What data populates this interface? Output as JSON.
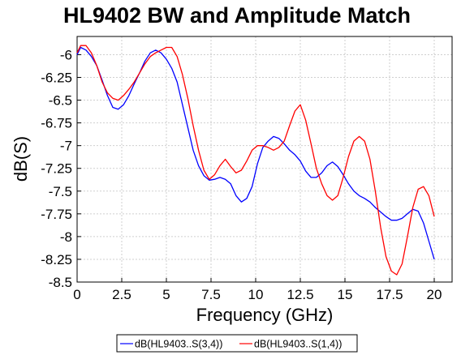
{
  "chart_data": {
    "type": "line",
    "title": "HL9402 BW and Amplitude Match",
    "xlabel": "Frequency (GHz)",
    "ylabel": "dB(S)",
    "xlim": [
      0,
      21
    ],
    "ylim": [
      -8.5,
      -5.8
    ],
    "xticks": [
      0,
      2.5,
      5,
      7.5,
      10,
      12.5,
      15,
      17.5,
      20
    ],
    "xtick_labels": [
      "0",
      "2.5",
      "5",
      "7.5",
      "10",
      "12.5",
      "15",
      "17.5",
      "20"
    ],
    "yticks": [
      -6,
      -6.25,
      -6.5,
      -6.75,
      -7,
      -7.25,
      -7.5,
      -7.75,
      -8,
      -8.25,
      -8.5
    ],
    "ytick_labels": [
      "-6",
      "-6.25",
      "-6.5",
      "-6.75",
      "-7",
      "-7.25",
      "-7.5",
      "-7.75",
      "-8",
      "-8.25",
      "-8.5"
    ],
    "grid": true,
    "legend_position": "bottom-center",
    "series": [
      {
        "name": "dB(HL9403..S(3,4))",
        "color": "#0000ff",
        "x": [
          0,
          0.2,
          0.5,
          0.8,
          1.1,
          1.4,
          1.7,
          2.0,
          2.3,
          2.6,
          2.9,
          3.2,
          3.5,
          3.8,
          4.1,
          4.4,
          4.7,
          5.0,
          5.3,
          5.6,
          5.9,
          6.2,
          6.5,
          6.8,
          7.1,
          7.4,
          7.7,
          8.0,
          8.3,
          8.6,
          8.9,
          9.2,
          9.5,
          9.8,
          10.1,
          10.4,
          10.7,
          11.0,
          11.3,
          11.6,
          11.9,
          12.2,
          12.5,
          12.8,
          13.1,
          13.4,
          13.7,
          14.0,
          14.3,
          14.6,
          14.9,
          15.2,
          15.5,
          15.8,
          16.1,
          16.4,
          16.7,
          17.0,
          17.3,
          17.6,
          17.9,
          18.2,
          18.5,
          18.8,
          19.1,
          19.4,
          19.7,
          20.0
        ],
        "values": [
          -6.0,
          -5.92,
          -5.95,
          -6.02,
          -6.12,
          -6.28,
          -6.45,
          -6.58,
          -6.6,
          -6.55,
          -6.45,
          -6.32,
          -6.2,
          -6.07,
          -5.98,
          -5.95,
          -5.98,
          -6.05,
          -6.15,
          -6.3,
          -6.55,
          -6.8,
          -7.05,
          -7.22,
          -7.33,
          -7.38,
          -7.37,
          -7.35,
          -7.37,
          -7.42,
          -7.55,
          -7.62,
          -7.58,
          -7.45,
          -7.2,
          -7.02,
          -6.95,
          -6.9,
          -6.92,
          -6.98,
          -7.05,
          -7.1,
          -7.17,
          -7.28,
          -7.35,
          -7.35,
          -7.3,
          -7.22,
          -7.18,
          -7.23,
          -7.32,
          -7.42,
          -7.5,
          -7.55,
          -7.58,
          -7.62,
          -7.68,
          -7.73,
          -7.78,
          -7.82,
          -7.82,
          -7.8,
          -7.75,
          -7.7,
          -7.72,
          -7.85,
          -8.05,
          -8.25
        ]
      },
      {
        "name": "dB(HL9403..S(1,4))",
        "color": "#ff0000",
        "x": [
          0,
          0.2,
          0.5,
          0.8,
          1.1,
          1.4,
          1.7,
          2.0,
          2.3,
          2.6,
          2.9,
          3.2,
          3.5,
          3.8,
          4.1,
          4.4,
          4.7,
          5.0,
          5.3,
          5.6,
          5.9,
          6.2,
          6.5,
          6.8,
          7.1,
          7.4,
          7.7,
          8.0,
          8.3,
          8.6,
          8.9,
          9.2,
          9.5,
          9.8,
          10.1,
          10.4,
          10.7,
          11.0,
          11.3,
          11.6,
          11.9,
          12.2,
          12.5,
          12.8,
          13.1,
          13.4,
          13.7,
          14.0,
          14.3,
          14.6,
          14.9,
          15.2,
          15.5,
          15.8,
          16.1,
          16.4,
          16.7,
          17.0,
          17.3,
          17.6,
          17.9,
          18.2,
          18.5,
          18.8,
          19.1,
          19.4,
          19.7,
          20.0
        ],
        "values": [
          -5.98,
          -5.9,
          -5.9,
          -5.98,
          -6.12,
          -6.3,
          -6.42,
          -6.48,
          -6.5,
          -6.45,
          -6.38,
          -6.3,
          -6.2,
          -6.1,
          -6.02,
          -5.98,
          -5.95,
          -5.92,
          -5.92,
          -6.02,
          -6.22,
          -6.48,
          -6.78,
          -7.05,
          -7.27,
          -7.37,
          -7.32,
          -7.22,
          -7.15,
          -7.23,
          -7.3,
          -7.27,
          -7.17,
          -7.05,
          -7.0,
          -7.0,
          -7.02,
          -7.05,
          -7.02,
          -6.95,
          -6.78,
          -6.62,
          -6.55,
          -6.72,
          -6.98,
          -7.25,
          -7.42,
          -7.55,
          -7.6,
          -7.55,
          -7.35,
          -7.12,
          -6.95,
          -6.9,
          -6.95,
          -7.15,
          -7.5,
          -7.9,
          -8.22,
          -8.38,
          -8.42,
          -8.3,
          -8.0,
          -7.68,
          -7.48,
          -7.45,
          -7.55,
          -7.78
        ]
      }
    ]
  }
}
